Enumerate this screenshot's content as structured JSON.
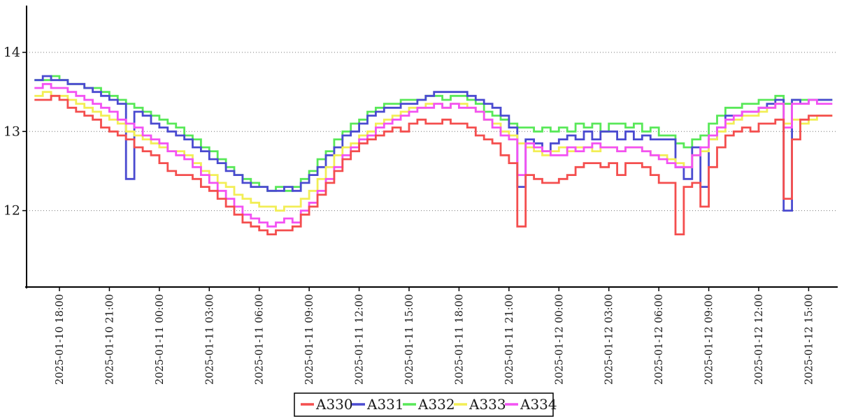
{
  "chart_data": {
    "type": "line",
    "step": true,
    "title": "",
    "x_start": "2025-01-10 16:30",
    "sample_interval_minutes": 30,
    "x_tick_labels": [
      "2025-01-10 18:00",
      "2025-01-10 21:00",
      "2025-01-11 00:00",
      "2025-01-11 03:00",
      "2025-01-11 06:00",
      "2025-01-11 09:00",
      "2025-01-11 12:00",
      "2025-01-11 15:00",
      "2025-01-11 18:00",
      "2025-01-11 21:00",
      "2025-01-12 00:00",
      "2025-01-12 03:00",
      "2025-01-12 06:00",
      "2025-01-12 09:00",
      "2025-01-12 12:00",
      "2025-01-12 15:00"
    ],
    "y_ticks": [
      12,
      13,
      14
    ],
    "ylim": [
      11.0,
      14.6
    ],
    "grid": "horizontal-dotted",
    "legend_position": "bottom-center",
    "draw_order": [
      "A332",
      "A331",
      "A333",
      "A334",
      "A330"
    ],
    "series": [
      {
        "name": "A330",
        "color": "#f44e4e",
        "values": [
          13.4,
          13.4,
          13.45,
          13.4,
          13.3,
          13.25,
          13.2,
          13.15,
          13.05,
          13.0,
          12.95,
          12.9,
          12.8,
          12.75,
          12.7,
          12.6,
          12.5,
          12.45,
          12.45,
          12.4,
          12.3,
          12.25,
          12.15,
          12.05,
          11.95,
          11.85,
          11.8,
          11.75,
          11.7,
          11.75,
          11.75,
          11.8,
          11.95,
          12.05,
          12.2,
          12.35,
          12.5,
          12.65,
          12.75,
          12.85,
          12.9,
          12.95,
          13.0,
          13.05,
          13.0,
          13.1,
          13.15,
          13.1,
          13.1,
          13.15,
          13.1,
          13.1,
          13.05,
          12.95,
          12.9,
          12.85,
          12.7,
          12.6,
          11.8,
          12.45,
          12.4,
          12.35,
          12.35,
          12.4,
          12.45,
          12.55,
          12.6,
          12.6,
          12.55,
          12.6,
          12.45,
          12.6,
          12.6,
          12.55,
          12.45,
          12.35,
          12.35,
          11.7,
          12.3,
          12.35,
          12.05,
          12.55,
          12.8,
          12.95,
          13.0,
          13.05,
          13.0,
          13.1,
          13.1,
          13.15,
          12.15,
          12.9,
          13.15,
          13.2,
          13.2,
          13.2
        ]
      },
      {
        "name": "A331",
        "color": "#4a4ad0",
        "values": [
          13.65,
          13.7,
          13.65,
          13.65,
          13.6,
          13.6,
          13.55,
          13.5,
          13.45,
          13.4,
          13.35,
          12.4,
          13.25,
          13.2,
          13.1,
          13.05,
          13.0,
          12.95,
          12.9,
          12.8,
          12.75,
          12.65,
          12.6,
          12.5,
          12.45,
          12.35,
          12.3,
          12.3,
          12.25,
          12.25,
          12.3,
          12.25,
          12.35,
          12.45,
          12.55,
          12.7,
          12.8,
          12.95,
          13.0,
          13.1,
          13.2,
          13.25,
          13.3,
          13.3,
          13.35,
          13.35,
          13.4,
          13.45,
          13.5,
          13.5,
          13.5,
          13.5,
          13.45,
          13.4,
          13.35,
          13.3,
          13.2,
          13.05,
          12.3,
          12.9,
          12.85,
          12.75,
          12.85,
          12.9,
          12.95,
          12.9,
          13.0,
          12.9,
          13.0,
          13.0,
          12.9,
          13.0,
          12.9,
          12.95,
          12.9,
          12.9,
          12.9,
          12.55,
          12.4,
          12.8,
          12.3,
          12.9,
          13.05,
          13.2,
          13.2,
          13.25,
          13.25,
          13.3,
          13.35,
          13.4,
          12.0,
          13.4,
          13.35,
          13.4,
          13.4,
          13.4
        ]
      },
      {
        "name": "A332",
        "color": "#58e858",
        "values": [
          13.65,
          13.65,
          13.7,
          13.65,
          13.6,
          13.6,
          13.55,
          13.55,
          13.5,
          13.45,
          13.4,
          13.35,
          13.3,
          13.25,
          13.2,
          13.15,
          13.1,
          13.05,
          12.95,
          12.9,
          12.8,
          12.75,
          12.65,
          12.55,
          12.45,
          12.4,
          12.35,
          12.3,
          12.25,
          12.3,
          12.25,
          12.3,
          12.4,
          12.5,
          12.65,
          12.75,
          12.9,
          13.0,
          13.1,
          13.15,
          13.25,
          13.3,
          13.35,
          13.35,
          13.4,
          13.4,
          13.4,
          13.45,
          13.45,
          13.4,
          13.45,
          13.45,
          13.4,
          13.35,
          13.25,
          13.2,
          13.15,
          13.1,
          13.05,
          13.05,
          13.0,
          13.05,
          13.0,
          13.05,
          13.0,
          13.1,
          13.05,
          13.1,
          13.0,
          13.1,
          13.1,
          13.05,
          13.1,
          13.0,
          13.05,
          12.95,
          12.95,
          12.85,
          12.8,
          12.9,
          12.95,
          13.1,
          13.2,
          13.3,
          13.3,
          13.35,
          13.35,
          13.4,
          13.4,
          13.45,
          13.35,
          13.4,
          13.4,
          13.4,
          13.4,
          13.4
        ]
      },
      {
        "name": "A333",
        "color": "#f2ee55",
        "values": [
          13.45,
          13.5,
          13.45,
          13.45,
          13.4,
          13.35,
          13.3,
          13.25,
          13.2,
          13.15,
          13.1,
          13.0,
          12.95,
          12.9,
          12.85,
          12.8,
          12.75,
          12.75,
          12.7,
          12.6,
          12.5,
          12.45,
          12.35,
          12.3,
          12.2,
          12.15,
          12.1,
          12.05,
          12.05,
          12.0,
          12.05,
          12.05,
          12.15,
          12.25,
          12.4,
          12.55,
          12.7,
          12.8,
          12.85,
          12.95,
          13.0,
          13.1,
          13.15,
          13.2,
          13.25,
          13.3,
          13.3,
          13.35,
          13.35,
          13.3,
          13.35,
          13.35,
          13.3,
          13.25,
          13.15,
          13.1,
          13.0,
          12.95,
          12.85,
          12.8,
          12.75,
          12.7,
          12.75,
          12.8,
          12.75,
          12.8,
          12.8,
          12.75,
          12.8,
          12.8,
          12.75,
          12.8,
          12.8,
          12.75,
          12.7,
          12.7,
          12.65,
          12.6,
          12.55,
          12.7,
          12.75,
          12.9,
          13.0,
          13.1,
          13.15,
          13.2,
          13.2,
          13.25,
          13.3,
          13.35,
          13.1,
          13.15,
          13.1,
          13.15,
          13.2,
          13.2
        ]
      },
      {
        "name": "A334",
        "color": "#f352f3",
        "values": [
          13.55,
          13.6,
          13.55,
          13.55,
          13.5,
          13.45,
          13.4,
          13.35,
          13.3,
          13.25,
          13.15,
          13.1,
          13.05,
          12.95,
          12.9,
          12.85,
          12.75,
          12.7,
          12.65,
          12.55,
          12.45,
          12.35,
          12.25,
          12.15,
          12.05,
          11.95,
          11.9,
          11.85,
          11.8,
          11.85,
          11.9,
          11.85,
          12.0,
          12.1,
          12.25,
          12.4,
          12.55,
          12.7,
          12.8,
          12.9,
          12.95,
          13.05,
          13.1,
          13.15,
          13.2,
          13.25,
          13.3,
          13.3,
          13.35,
          13.3,
          13.35,
          13.3,
          13.3,
          13.25,
          13.15,
          13.05,
          12.95,
          12.9,
          12.45,
          12.85,
          12.8,
          12.75,
          12.7,
          12.7,
          12.8,
          12.75,
          12.8,
          12.85,
          12.8,
          12.8,
          12.75,
          12.8,
          12.8,
          12.75,
          12.7,
          12.65,
          12.6,
          12.55,
          12.55,
          12.7,
          12.8,
          12.95,
          13.05,
          13.15,
          13.2,
          13.25,
          13.25,
          13.3,
          13.3,
          13.35,
          13.05,
          13.35,
          13.35,
          13.4,
          13.35,
          13.35
        ]
      }
    ]
  },
  "colors": {
    "background": "#ffffff",
    "axis": "#000000",
    "grid": "#777777",
    "text": "#1a1a1a",
    "legend_border": "#000000"
  }
}
